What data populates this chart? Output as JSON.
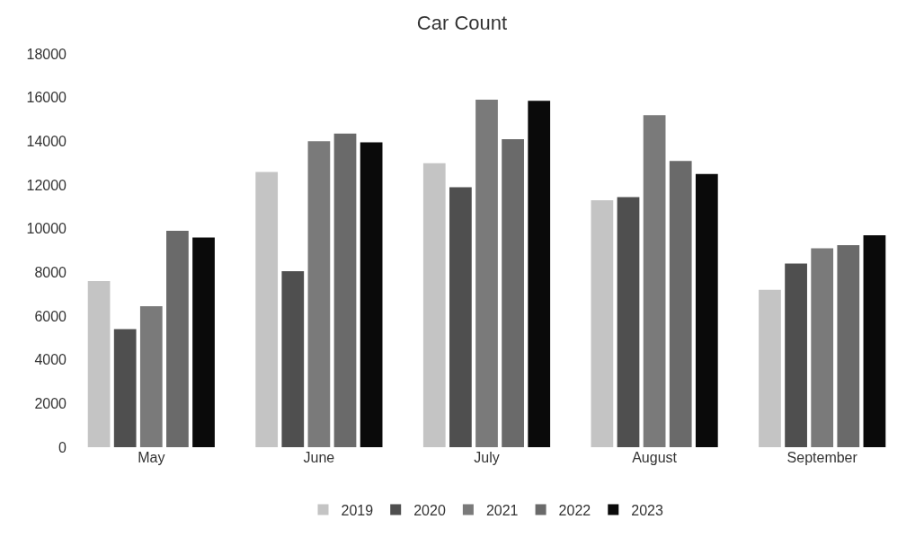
{
  "chart_data": {
    "type": "bar",
    "title": "Car Count",
    "categories": [
      "May",
      "June",
      "July",
      "August",
      "September"
    ],
    "series": [
      {
        "name": "2019",
        "color": "#c4c4c4",
        "values": [
          7600,
          12600,
          13000,
          11300,
          7200
        ]
      },
      {
        "name": "2020",
        "color": "#4f4f4f",
        "values": [
          5400,
          8050,
          11900,
          11450,
          8400
        ]
      },
      {
        "name": "2021",
        "color": "#7a7a7a",
        "values": [
          6450,
          14000,
          15900,
          15200,
          9100
        ]
      },
      {
        "name": "2022",
        "color": "#6a6a6a",
        "values": [
          9900,
          14350,
          14100,
          13100,
          9250
        ]
      },
      {
        "name": "2023",
        "color": "#0a0a0a",
        "values": [
          9600,
          13950,
          15850,
          12500,
          9700
        ]
      }
    ],
    "ylim": [
      0,
      18000
    ],
    "yticks": [
      0,
      2000,
      4000,
      6000,
      8000,
      10000,
      12000,
      14000,
      16000,
      18000
    ],
    "grid": false,
    "legend": "bottom"
  }
}
